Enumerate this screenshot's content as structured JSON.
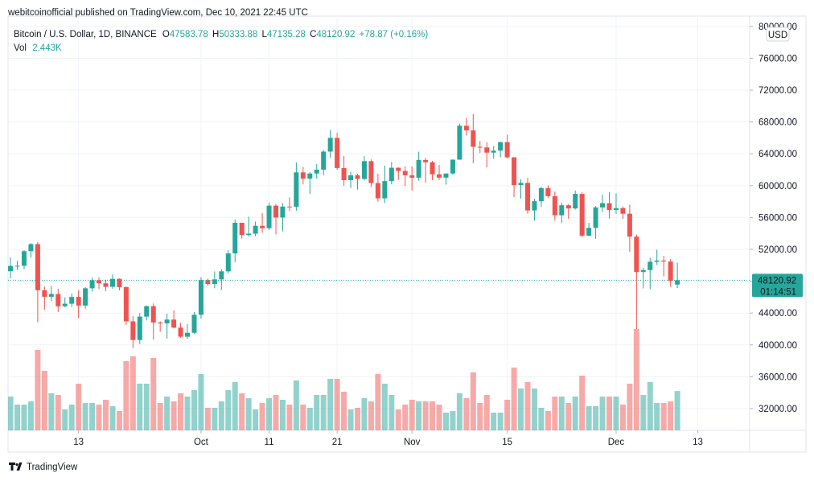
{
  "published": "webitcoinofficial published on TradingView.com, Dec 10, 2021 22:45 UTC",
  "brand": "TradingView",
  "chart_data": {
    "type": "candlestick",
    "title": "Bitcoin / U.S. Dollar, 1D, BINANCE",
    "ohlc_letters": [
      "O",
      "H",
      "L",
      "C"
    ],
    "change_label": "+78.87 (+0.16%)",
    "volume_title": "Vol",
    "last_volume_label": "2.443K",
    "currency": "USD",
    "countdown": "01:14:51",
    "up_color": "#26a69a",
    "down_color": "#ef5350",
    "volume_up_color": "rgba(38,166,154,0.5)",
    "volume_down_color": "rgba(239,83,80,0.5)",
    "x": [
      "2021-09-03",
      "2021-09-04",
      "2021-09-05",
      "2021-09-06",
      "2021-09-07",
      "2021-09-08",
      "2021-09-09",
      "2021-09-10",
      "2021-09-11",
      "2021-09-12",
      "2021-09-13",
      "2021-09-14",
      "2021-09-15",
      "2021-09-16",
      "2021-09-17",
      "2021-09-18",
      "2021-09-19",
      "2021-09-20",
      "2021-09-21",
      "2021-09-22",
      "2021-09-23",
      "2021-09-24",
      "2021-09-25",
      "2021-09-26",
      "2021-09-27",
      "2021-09-28",
      "2021-09-29",
      "2021-09-30",
      "2021-10-01",
      "2021-10-02",
      "2021-10-03",
      "2021-10-04",
      "2021-10-05",
      "2021-10-06",
      "2021-10-07",
      "2021-10-08",
      "2021-10-09",
      "2021-10-10",
      "2021-10-11",
      "2021-10-12",
      "2021-10-13",
      "2021-10-14",
      "2021-10-15",
      "2021-10-16",
      "2021-10-17",
      "2021-10-18",
      "2021-10-19",
      "2021-10-20",
      "2021-10-21",
      "2021-10-22",
      "2021-10-23",
      "2021-10-24",
      "2021-10-25",
      "2021-10-26",
      "2021-10-27",
      "2021-10-28",
      "2021-10-29",
      "2021-10-30",
      "2021-10-31",
      "2021-11-01",
      "2021-11-02",
      "2021-11-03",
      "2021-11-04",
      "2021-11-05",
      "2021-11-06",
      "2021-11-07",
      "2021-11-08",
      "2021-11-09",
      "2021-11-10",
      "2021-11-11",
      "2021-11-12",
      "2021-11-13",
      "2021-11-14",
      "2021-11-15",
      "2021-11-16",
      "2021-11-17",
      "2021-11-18",
      "2021-11-19",
      "2021-11-20",
      "2021-11-21",
      "2021-11-22",
      "2021-11-23",
      "2021-11-24",
      "2021-11-25",
      "2021-11-26",
      "2021-11-27",
      "2021-11-28",
      "2021-11-29",
      "2021-11-30",
      "2021-12-01",
      "2021-12-02",
      "2021-12-03",
      "2021-12-04",
      "2021-12-05",
      "2021-12-06",
      "2021-12-07",
      "2021-12-08",
      "2021-12-09",
      "2021-12-10"
    ],
    "open": [
      49250,
      49918,
      49939,
      51770,
      52663,
      46863,
      46048,
      46395,
      44850,
      45173,
      46026,
      44940,
      47111,
      48121,
      47737,
      47300,
      48300,
      47260,
      42961,
      40614,
      43553,
      44866,
      42810,
      42700,
      43180,
      42170,
      41030,
      41520,
      43790,
      48140,
      47650,
      48230,
      49240,
      51490,
      55340,
      53800,
      53970,
      54960,
      54660,
      57490,
      56000,
      57370,
      57350,
      61670,
      60880,
      61530,
      62010,
      64280,
      66000,
      62210,
      60690,
      61300,
      60850,
      63080,
      60330,
      58410,
      60570,
      62250,
      61850,
      61300,
      61000,
      63230,
      62940,
      61430,
      61010,
      61530,
      63270,
      67530,
      66940,
      64880,
      64800,
      64150,
      64400,
      65470,
      63560,
      60080,
      60350,
      56890,
      58050,
      59700,
      58680,
      56280,
      57540,
      57140,
      58960,
      53720,
      54700,
      57270,
      57800,
      56950,
      57180,
      56480,
      53600,
      49150,
      49400,
      50440,
      50590,
      50470,
      47583.78
    ],
    "high": [
      51000,
      50558,
      51900,
      52780,
      52920,
      47340,
      47400,
      47033,
      45970,
      46460,
      46880,
      47250,
      48450,
      48500,
      48180,
      48843,
      48370,
      47334,
      43639,
      44000,
      44970,
      45200,
      42960,
      43920,
      44350,
      42780,
      42590,
      44130,
      48500,
      48330,
      49230,
      49500,
      51890,
      55750,
      55340,
      56100,
      55490,
      56560,
      57840,
      57680,
      57800,
      58530,
      62930,
      62350,
      61720,
      62700,
      64490,
      67000,
      66640,
      63730,
      61750,
      61490,
      63710,
      63290,
      61500,
      62500,
      62980,
      62300,
      62400,
      62420,
      64270,
      63500,
      63120,
      62600,
      61560,
      63290,
      67800,
      68530,
      69000,
      65600,
      65460,
      64980,
      65500,
      66400,
      63570,
      60800,
      60970,
      58360,
      59850,
      60050,
      59270,
      57870,
      57700,
      59400,
      59170,
      55320,
      57440,
      58870,
      59200,
      59050,
      57390,
      57600,
      53860,
      49700,
      50930,
      51950,
      51200,
      50800,
      50333.88
    ],
    "low": [
      48350,
      49400,
      49500,
      50970,
      42843,
      44412,
      45514,
      44134,
      44722,
      44750,
      43370,
      44560,
      46700,
      47020,
      46750,
      47050,
      46850,
      42500,
      39600,
      40100,
      43090,
      40675,
      41650,
      40800,
      42100,
      40880,
      40750,
      41400,
      43290,
      47430,
      47120,
      46900,
      49000,
      50380,
      53350,
      53620,
      53660,
      54080,
      54420,
      53880,
      54250,
      56820,
      56850,
      60150,
      58960,
      60880,
      61320,
      63480,
      62000,
      60000,
      59700,
      59510,
      60650,
      59820,
      58000,
      57820,
      60170,
      60730,
      59940,
      59400,
      60630,
      60380,
      60680,
      60720,
      60130,
      61380,
      63270,
      66300,
      62820,
      64100,
      62300,
      63400,
      63570,
      63400,
      58570,
      58370,
      56470,
      55600,
      57350,
      58470,
      55600,
      55320,
      55830,
      57000,
      53500,
      53650,
      53330,
      56700,
      55870,
      56460,
      55830,
      51680,
      42000,
      47100,
      47000,
      50040,
      48600,
      47300,
      47135.28
    ],
    "close": [
      49918,
      49939,
      51770,
      52663,
      46863,
      46048,
      46395,
      44850,
      45173,
      46026,
      44940,
      47111,
      48121,
      47737,
      47300,
      48300,
      47260,
      42961,
      40614,
      43553,
      44866,
      42810,
      42700,
      43180,
      42170,
      41030,
      41520,
      43790,
      48140,
      47650,
      48230,
      49240,
      51490,
      55340,
      53800,
      53970,
      54960,
      54660,
      57490,
      56000,
      57370,
      57350,
      61670,
      60880,
      61530,
      62010,
      64280,
      66000,
      62210,
      60690,
      61300,
      60850,
      63080,
      60330,
      58410,
      60570,
      62250,
      61850,
      61300,
      61000,
      63230,
      62940,
      61430,
      61010,
      61530,
      63270,
      67530,
      66940,
      64880,
      64800,
      64150,
      64400,
      65470,
      63560,
      60080,
      60350,
      56890,
      58050,
      59700,
      58680,
      56280,
      57540,
      57140,
      58960,
      53720,
      54700,
      57270,
      57800,
      56950,
      57180,
      56480,
      53600,
      49150,
      49400,
      50440,
      50590,
      50470,
      48042.05,
      48120.92
    ],
    "volume": [
      2.1,
      1.6,
      1.6,
      1.8,
      5.0,
      3.7,
      2.3,
      2.2,
      1.3,
      1.6,
      2.9,
      1.7,
      1.7,
      1.6,
      1.9,
      1.5,
      1.2,
      4.3,
      4.6,
      2.9,
      2.9,
      4.5,
      1.7,
      2.1,
      1.8,
      2.3,
      2.1,
      2.5,
      3.5,
      1.4,
      1.4,
      1.8,
      2.5,
      3.0,
      2.3,
      2.0,
      1.3,
      1.7,
      2.0,
      2.2,
      1.9,
      1.6,
      3.1,
      1.6,
      1.4,
      2.2,
      2.2,
      3.2,
      3.2,
      2.4,
      1.3,
      1.4,
      2.0,
      1.8,
      3.5,
      2.9,
      2.2,
      1.3,
      1.6,
      1.9,
      1.8,
      1.8,
      1.8,
      1.6,
      1.1,
      1.2,
      2.3,
      2.0,
      3.6,
      1.7,
      2.2,
      1.1,
      1.1,
      1.9,
      3.9,
      2.6,
      3.0,
      2.6,
      1.4,
      1.2,
      2.1,
      2.1,
      1.7,
      2.1,
      3.4,
      1.5,
      1.5,
      2.1,
      2.1,
      2.1,
      1.6,
      2.9,
      6.3,
      2.2,
      3.0,
      1.7,
      1.7,
      1.8,
      2.443
    ],
    "xlim": [
      "2021-09-02",
      "2021-12-20"
    ],
    "xticks": [
      {
        "value": "2021-09-13",
        "label": "13"
      },
      {
        "value": "2021-10-01",
        "label": "Oct"
      },
      {
        "value": "2021-10-11",
        "label": "11"
      },
      {
        "value": "2021-10-21",
        "label": "21"
      },
      {
        "value": "2021-11-01",
        "label": "Nov"
      },
      {
        "value": "2021-11-15",
        "label": "15"
      },
      {
        "value": "2021-12-01",
        "label": "Dec"
      },
      {
        "value": "2021-12-13",
        "label": "13"
      }
    ],
    "ylim": [
      29270,
      81300
    ],
    "yticks": [
      {
        "value": 32000,
        "label": "32000.00"
      },
      {
        "value": 36000,
        "label": "36000.00"
      },
      {
        "value": 40000,
        "label": "40000.00"
      },
      {
        "value": 44000,
        "label": "44000.00"
      },
      {
        "value": 48000,
        "label": "48000.00"
      },
      {
        "value": 52000,
        "label": "52000.00"
      },
      {
        "value": 56000,
        "label": "56000.00"
      },
      {
        "value": 60000,
        "label": "60000.00"
      },
      {
        "value": 64000,
        "label": "64000.00"
      },
      {
        "value": 68000,
        "label": "68000.00"
      },
      {
        "value": 72000,
        "label": "72000.00"
      },
      {
        "value": 76000,
        "label": "76000.00"
      },
      {
        "value": 80000,
        "label": "80000.00"
      }
    ],
    "grid": true
  }
}
